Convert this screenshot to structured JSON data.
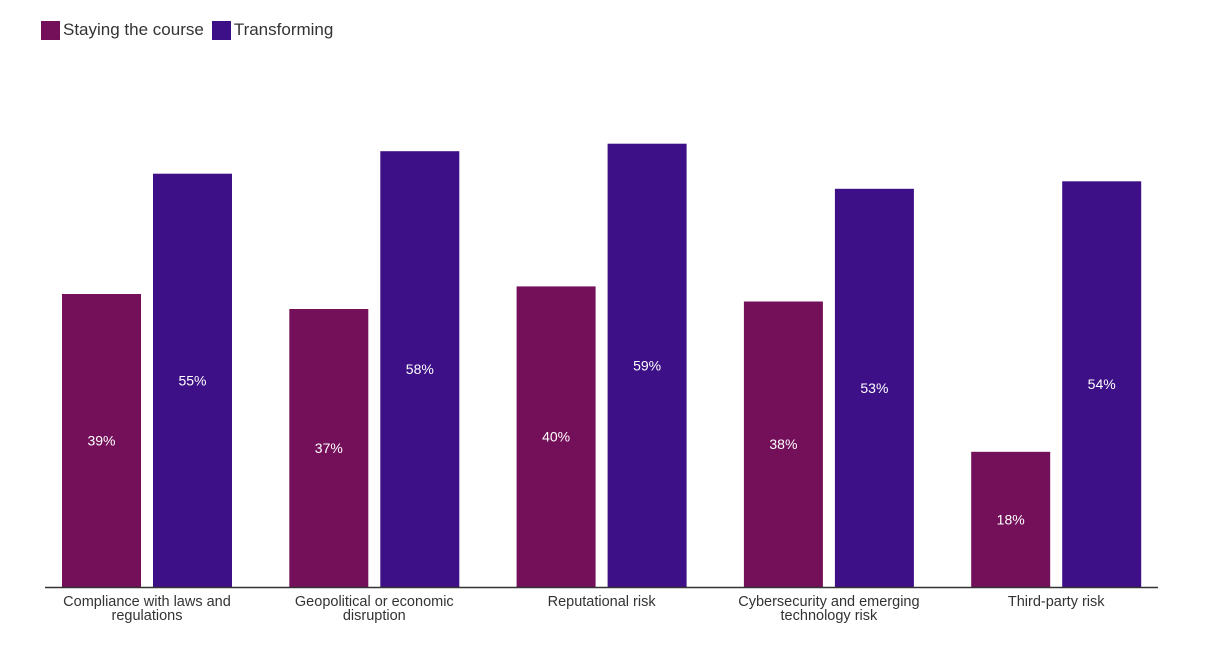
{
  "chart_data": {
    "type": "bar",
    "categories": [
      [
        "Compliance with laws and",
        "regulations"
      ],
      [
        "Geopolitical or economic",
        "disruption"
      ],
      [
        "Reputational risk"
      ],
      [
        "Cybersecurity and emerging",
        "technology risk"
      ],
      [
        "Third-party risk"
      ]
    ],
    "series": [
      {
        "name": "Staying the course",
        "color": "#731059",
        "values": [
          39,
          37,
          40,
          38,
          18
        ],
        "labels": [
          "39%",
          "37%",
          "40%",
          "38%",
          "18%"
        ]
      },
      {
        "name": "Transforming",
        "color": "#3D1087",
        "values": [
          55,
          58,
          59,
          53,
          54
        ],
        "labels": [
          "55%",
          "58%",
          "59%",
          "53%",
          "54%"
        ]
      }
    ],
    "ylim": [
      0,
      72
    ],
    "grid": false,
    "legend_position": "top-left"
  }
}
